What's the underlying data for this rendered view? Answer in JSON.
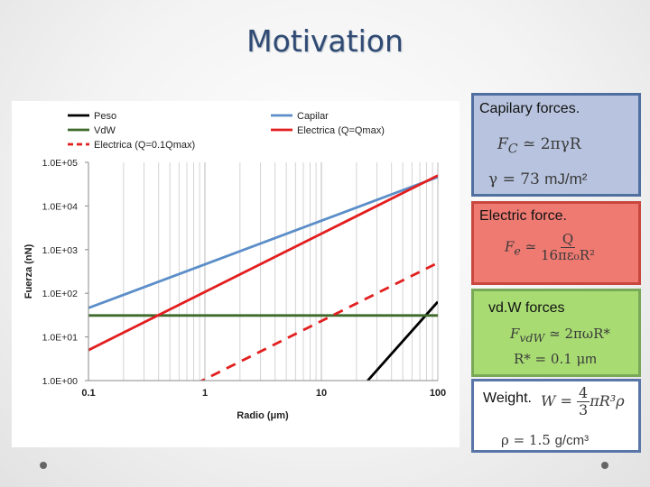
{
  "slide": {
    "title": "Motivation"
  },
  "boxes": {
    "capilar": {
      "title": "Capilary forces.",
      "eq1_lhs": "F",
      "eq1_lhs_sub": "C",
      "eq1_rhs": "≃ 2πγR",
      "eq2_lhs": "γ = 73",
      "eq2_unit": "mJ/m²"
    },
    "electric": {
      "title": "Electric force.",
      "eq_lhs": "F",
      "eq_lhs_sub": "e",
      "eq_op": "≃",
      "eq_num": "Q",
      "eq_den": "16πε₀R²"
    },
    "vdw": {
      "title": "vd.W forces",
      "eq1_lhs": "F",
      "eq1_lhs_sub": "vdW",
      "eq1_rhs": "≃ 2πωR*",
      "eq2": "R* = 0.1 μ",
      "eq2_unit": "m"
    },
    "weight": {
      "title": "Weight.",
      "eq_lhs": "W =",
      "eq_num": "4",
      "eq_den": "3",
      "eq_rhs": "πR³ρ",
      "eq2": "ρ = 1.5",
      "eq2_unit": "g/cm³"
    }
  },
  "chart_data": {
    "type": "line",
    "xlabel": "Radio (μm)",
    "ylabel": "Fuerza (nN)",
    "xscale": "log",
    "yscale": "log",
    "xlim": [
      0.1,
      100
    ],
    "ylim": [
      1,
      100000
    ],
    "xticks": [
      0.1,
      1,
      10,
      100
    ],
    "xtick_labels": [
      "0.1",
      "1",
      "10",
      "100"
    ],
    "yticks": [
      1,
      10,
      100,
      1000,
      10000,
      100000
    ],
    "ytick_labels": [
      "1.0E+00",
      "1.0E+01",
      "1.0E+02",
      "1.0E+03",
      "1.0E+04",
      "1.0E+05"
    ],
    "grid": "vertical minor",
    "legend": "top",
    "series": [
      {
        "name": "Peso",
        "color": "#000000",
        "style": "solid",
        "points": [
          [
            25,
            1
          ],
          [
            100,
            64
          ]
        ]
      },
      {
        "name": "Capilar",
        "color": "#5b8ec8",
        "style": "solid",
        "points": [
          [
            0.1,
            46
          ],
          [
            100,
            46000
          ]
        ]
      },
      {
        "name": "VdW",
        "color": "#3f6a2c",
        "style": "solid",
        "points": [
          [
            0.1,
            31
          ],
          [
            100,
            31
          ]
        ]
      },
      {
        "name": "Electrica (Q=Qmax)",
        "color": "#e21f1f",
        "style": "solid",
        "points": [
          [
            0.1,
            5
          ],
          [
            100,
            50000
          ]
        ]
      },
      {
        "name": "Electrica (Q=0.1Qmax)",
        "color": "#e21f1f",
        "style": "dashed",
        "points": [
          [
            0.1,
            0.05
          ],
          [
            100,
            500
          ]
        ]
      }
    ]
  }
}
